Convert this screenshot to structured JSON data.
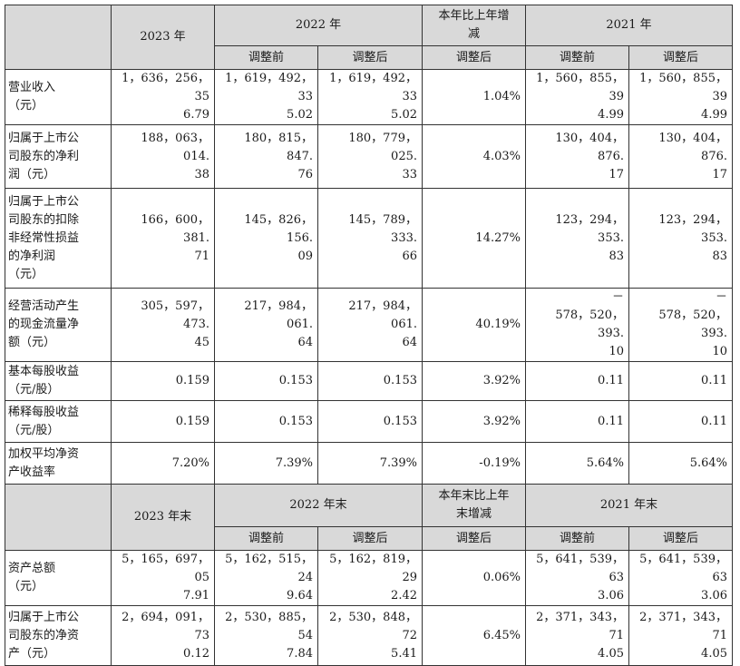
{
  "section1": {
    "header": {
      "y2023": "2023 年",
      "y2022": "2022 年",
      "change": "本年比上年增\n减",
      "y2021": "2021 年",
      "before": "调整前",
      "after": "调整后",
      "change_after": "调整后"
    },
    "rows": [
      {
        "label": "营业收入\n（元）",
        "v2023": "1，636，256，35\n6.79",
        "v2022b": "1，619，492，33\n5.02",
        "v2022a": "1，619，492，33\n5.02",
        "chg": "1.04%",
        "v2021b": "1，560，855，39\n4.99",
        "v2021a": "1，560，855，39\n4.99"
      },
      {
        "label": "归属于上市公\n司股东的净利\n润（元）",
        "v2023": "188，063，014.\n38",
        "v2022b": "180，815，847.\n76",
        "v2022a": "180，779，025.\n33",
        "chg": "4.03%",
        "v2021b": "130，404，876.\n17",
        "v2021a": "130，404，876.\n17"
      },
      {
        "label": "归属于上市公\n司股东的扣除\n非经常性损益\n的净利润\n（元）",
        "v2023": "166，600，381.\n71",
        "v2022b": "145，826，156.\n09",
        "v2022a": "145，789，333.\n66",
        "chg": "14.27%",
        "v2021b": "123，294，353.\n83",
        "v2021a": "123，294，353.\n83"
      },
      {
        "label": "经营活动产生\n的现金流量净\n额（元）",
        "v2023": "305，597，473.\n45",
        "v2022b": "217，984，061.\n64",
        "v2022a": "217，984，061.\n64",
        "chg": "40.19%",
        "v2021b": "－\n578，520，393.\n10",
        "v2021a": "－\n578，520，393.\n10"
      },
      {
        "label": "基本每股收益\n（元/股）",
        "v2023": "0.159",
        "v2022b": "0.153",
        "v2022a": "0.153",
        "chg": "3.92%",
        "v2021b": "0.11",
        "v2021a": "0.11"
      },
      {
        "label": "稀释每股收益\n（元/股）",
        "v2023": "0.159",
        "v2022b": "0.153",
        "v2022a": "0.153",
        "chg": "3.92%",
        "v2021b": "0.11",
        "v2021a": "0.11"
      },
      {
        "label": "加权平均净资\n产收益率",
        "v2023": "7.20%",
        "v2022b": "7.39%",
        "v2022a": "7.39%",
        "chg": "-0.19%",
        "v2021b": "5.64%",
        "v2021a": "5.64%"
      }
    ]
  },
  "section2": {
    "header": {
      "y2023": "2023 年末",
      "y2022": "2022 年末",
      "change": "本年末比上年\n末增减",
      "y2021": "2021 年末",
      "before": "调整前",
      "after": "调整后",
      "change_after": "调整后"
    },
    "rows": [
      {
        "label": "资产总额\n（元）",
        "v2023": "5，165，697，05\n7.91",
        "v2022b": "5，162，515，24\n9.64",
        "v2022a": "5，162，819，29\n2.42",
        "chg": "0.06%",
        "v2021b": "5，641，539，63\n3.06",
        "v2021a": "5，641，539，63\n3.06"
      },
      {
        "label": "归属于上市公\n司股东的净资\n产（元）",
        "v2023": "2，694，091，73\n0.12",
        "v2022b": "2，530，885，54\n7.84",
        "v2022a": "2，530，848，72\n5.41",
        "chg": "6.45%",
        "v2021b": "2，371，343，71\n4.05",
        "v2021a": "2，371，343，71\n4.05"
      }
    ]
  }
}
